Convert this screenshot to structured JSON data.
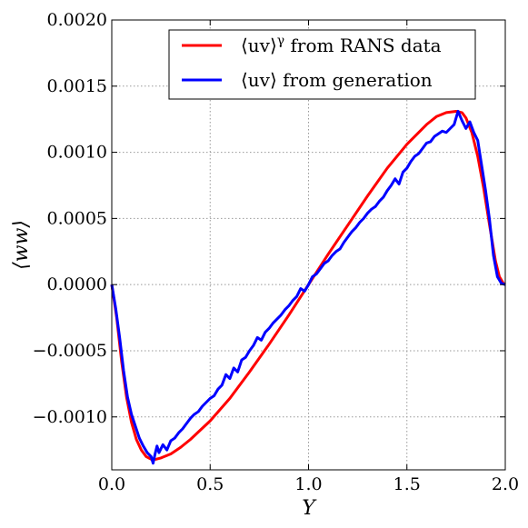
{
  "chart_data": {
    "type": "line",
    "title": "",
    "xlabel": "Y",
    "ylabel": "⟨ww⟩",
    "xlim": [
      0.0,
      2.0
    ],
    "ylim": [
      -0.0014,
      0.002
    ],
    "x_ticks": [
      0.0,
      0.5,
      1.0,
      1.5,
      2.0
    ],
    "x_tick_labels": [
      "0.0",
      "0.5",
      "1.0",
      "1.5",
      "2.0"
    ],
    "y_ticks": [
      -0.001,
      -0.0005,
      0.0,
      0.0005,
      0.001,
      0.0015,
      0.002
    ],
    "y_tick_labels": [
      "−0.0010",
      "−0.0005",
      "0.0000",
      "0.0005",
      "0.0010",
      "0.0015",
      "0.0020"
    ],
    "grid": true,
    "legend_position": "top-right",
    "series": [
      {
        "name": "⟨uv⟩^γ from RANS data",
        "legend_main": "⟨uv⟩",
        "legend_sup": "γ",
        "legend_rest": " from RANS data",
        "color": "#ff0000",
        "x": [
          0.0,
          0.025,
          0.05,
          0.075,
          0.1,
          0.125,
          0.15,
          0.175,
          0.2,
          0.225,
          0.25,
          0.3,
          0.35,
          0.4,
          0.5,
          0.6,
          0.7,
          0.8,
          0.9,
          1.0,
          1.1,
          1.2,
          1.3,
          1.4,
          1.5,
          1.6,
          1.65,
          1.7,
          1.75,
          1.78,
          1.8,
          1.83,
          1.86,
          1.89,
          1.92,
          1.95,
          1.97,
          1.99,
          2.0
        ],
        "y": [
          0.0,
          -0.00025,
          -0.00058,
          -0.00085,
          -0.00104,
          -0.00117,
          -0.00125,
          -0.0013,
          -0.00132,
          -0.00132,
          -0.00131,
          -0.00128,
          -0.00123,
          -0.00117,
          -0.00103,
          -0.00086,
          -0.00066,
          -0.00045,
          -0.00023,
          0.0,
          0.00023,
          0.00045,
          0.00067,
          0.00088,
          0.00106,
          0.00121,
          0.00127,
          0.0013,
          0.00131,
          0.0013,
          0.00126,
          0.00115,
          0.00097,
          0.00073,
          0.00045,
          0.00018,
          6e-05,
          1e-05,
          0.0
        ]
      },
      {
        "name": "⟨uv⟩ from generation",
        "legend_main": "⟨uv⟩",
        "legend_rest": " from generation",
        "color": "#0000ff",
        "x": [
          0.0,
          0.02,
          0.04,
          0.06,
          0.08,
          0.1,
          0.12,
          0.14,
          0.16,
          0.18,
          0.2,
          0.21,
          0.22,
          0.23,
          0.24,
          0.26,
          0.28,
          0.3,
          0.32,
          0.34,
          0.36,
          0.38,
          0.4,
          0.42,
          0.44,
          0.46,
          0.48,
          0.5,
          0.52,
          0.54,
          0.56,
          0.58,
          0.6,
          0.62,
          0.64,
          0.66,
          0.68,
          0.7,
          0.72,
          0.74,
          0.76,
          0.78,
          0.8,
          0.82,
          0.84,
          0.86,
          0.88,
          0.9,
          0.92,
          0.94,
          0.96,
          0.98,
          1.0,
          1.02,
          1.04,
          1.06,
          1.08,
          1.1,
          1.12,
          1.14,
          1.16,
          1.18,
          1.2,
          1.22,
          1.24,
          1.26,
          1.28,
          1.3,
          1.32,
          1.34,
          1.36,
          1.38,
          1.4,
          1.42,
          1.44,
          1.46,
          1.48,
          1.5,
          1.52,
          1.54,
          1.56,
          1.58,
          1.6,
          1.62,
          1.64,
          1.66,
          1.68,
          1.7,
          1.72,
          1.74,
          1.76,
          1.78,
          1.8,
          1.82,
          1.84,
          1.86,
          1.88,
          1.9,
          1.92,
          1.94,
          1.96,
          1.98,
          2.0
        ],
        "y": [
          0.0,
          -0.00018,
          -0.0004,
          -0.00065,
          -0.00085,
          -0.00098,
          -0.00107,
          -0.00116,
          -0.00122,
          -0.00127,
          -0.0013,
          -0.00135,
          -0.00128,
          -0.00122,
          -0.00127,
          -0.00121,
          -0.00125,
          -0.00118,
          -0.00116,
          -0.00112,
          -0.00109,
          -0.00105,
          -0.00101,
          -0.00098,
          -0.00096,
          -0.00092,
          -0.00089,
          -0.00086,
          -0.00084,
          -0.00079,
          -0.00076,
          -0.00068,
          -0.00071,
          -0.00063,
          -0.00066,
          -0.00057,
          -0.00055,
          -0.0005,
          -0.00046,
          -0.0004,
          -0.00042,
          -0.00036,
          -0.00033,
          -0.00029,
          -0.00026,
          -0.00023,
          -0.00019,
          -0.00016,
          -0.00012,
          -9e-05,
          -3e-05,
          -5e-05,
          0.0,
          6e-05,
          8e-05,
          0.00012,
          0.00016,
          0.00018,
          0.00022,
          0.00025,
          0.00027,
          0.00032,
          0.00036,
          0.0004,
          0.00043,
          0.00047,
          0.0005,
          0.00054,
          0.00057,
          0.00059,
          0.00063,
          0.00066,
          0.00071,
          0.00075,
          0.0008,
          0.00076,
          0.00085,
          0.00088,
          0.00093,
          0.00097,
          0.00099,
          0.00103,
          0.00107,
          0.00108,
          0.00112,
          0.00114,
          0.00116,
          0.00115,
          0.00118,
          0.00121,
          0.00131,
          0.00124,
          0.00118,
          0.00123,
          0.00115,
          0.00109,
          0.0009,
          0.00071,
          0.00049,
          0.00022,
          6e-05,
          1e-05,
          0.0
        ]
      }
    ]
  }
}
